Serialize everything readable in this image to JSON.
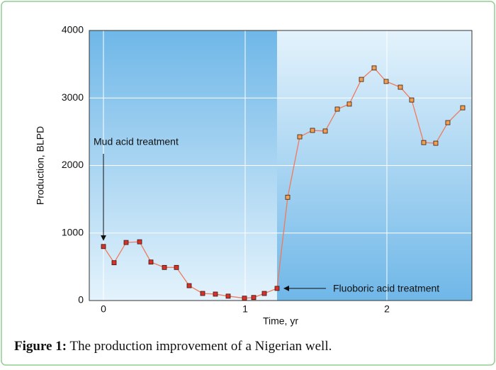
{
  "chart_data": {
    "type": "line",
    "xlabel": "Time, yr",
    "ylabel": "Production, BLPD",
    "xlim": [
      -0.1,
      2.6
    ],
    "ylim": [
      0,
      4000
    ],
    "xticks": [
      0,
      1,
      2
    ],
    "yticks": [
      0,
      1000,
      2000,
      3000,
      4000
    ],
    "grid": true,
    "series": [
      {
        "color": "#d8302a",
        "x": [
          0,
          0.075,
          0.16,
          0.255,
          0.335,
          0.43,
          0.515,
          0.605,
          0.7,
          0.79,
          0.88,
          0.995,
          1.06,
          1.135,
          1.225
        ],
        "values": [
          800,
          560,
          860,
          870,
          570,
          490,
          490,
          220,
          105,
          95,
          65,
          35,
          45,
          105,
          180
        ]
      },
      {
        "color": "#f0a050",
        "x": [
          1.3,
          1.385,
          1.475,
          1.565,
          1.65,
          1.735,
          1.82,
          1.91,
          1.995,
          2.095,
          2.175,
          2.26,
          2.345,
          2.43,
          2.535
        ],
        "values": [
          1530,
          2425,
          2520,
          2510,
          2835,
          2910,
          3275,
          3445,
          3245,
          3160,
          2970,
          2340,
          2330,
          2635,
          2855
        ]
      }
    ],
    "line_color": "#f07a5a",
    "annotations": [
      "Mud acid treatment",
      "Fluoboric acid treatment"
    ]
  },
  "caption": {
    "label": "Figure 1:",
    "text": "The production improvement of a Nigerian well."
  }
}
